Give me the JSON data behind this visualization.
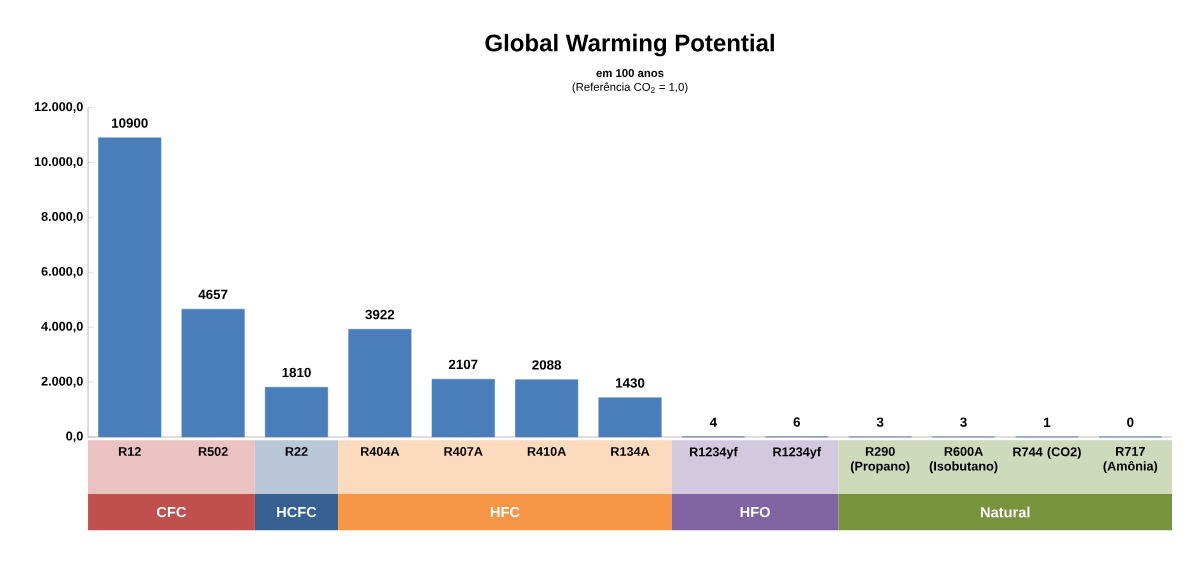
{
  "chart_data": {
    "type": "bar",
    "title": "Global Warming Potential",
    "subtitle": "em 100 anos",
    "annotations": [
      "(Referência CO$_{2}$ = 1,0)",
      "CFC",
      "HCFC",
      "HFC",
      "HFO",
      "Natural"
    ],
    "categories": [
      "R12",
      "R502",
      "R22",
      "R404A",
      "R407A",
      "R410A",
      "R134A",
      "R1234yf",
      "R1234yf",
      "R290 (Propano)",
      "R600A (Isobutano)",
      "R744 (CO2)",
      "R717 (Amônia)"
    ],
    "values": [
      10900,
      4657,
      1810,
      3922,
      2107,
      2088,
      1430,
      4,
      6,
      3,
      3,
      1,
      0
    ],
    "color": "#4a7ebb",
    "data_labels": true,
    "ylim": [
      0,
      12000
    ],
    "yticks": [
      {
        "value": 0,
        "label": "0,0"
      },
      {
        "value": 2000,
        "label": "2.000,0"
      },
      {
        "value": 4000,
        "label": "4.000,0"
      },
      {
        "value": 6000,
        "label": "6.000,0"
      },
      {
        "value": 8000,
        "label": "8.000,0"
      },
      {
        "value": 10000,
        "label": "10.000,0"
      },
      {
        "value": 12000,
        "label": "12.000,0"
      }
    ],
    "grid": false
  }
}
